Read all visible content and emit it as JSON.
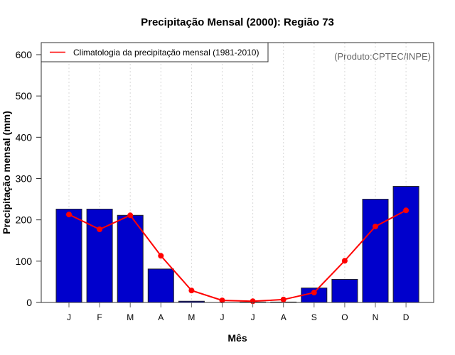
{
  "chart_data": {
    "type": "bar",
    "title": "Precipitação Mensal (2000): Região 73",
    "xlabel": "Mês",
    "ylabel": "Precipitação mensal (mm)",
    "ylim": [
      0,
      600
    ],
    "yticks": [
      0,
      100,
      200,
      300,
      400,
      500,
      600
    ],
    "categories": [
      "J",
      "F",
      "M",
      "A",
      "M",
      "J",
      "J",
      "A",
      "S",
      "O",
      "N",
      "D"
    ],
    "grid": "vertical dotted",
    "series": [
      {
        "name": "Precipitação mensal (2000)",
        "type": "bar",
        "color": "#0000cc",
        "values": [
          226,
          226,
          211,
          81,
          3,
          0,
          1,
          1,
          35,
          56,
          250,
          281
        ]
      },
      {
        "name": "Climatologia da precipitação mensal (1981-2010)",
        "type": "line",
        "color": "#ff0000",
        "values": [
          213,
          177,
          211,
          113,
          29,
          5,
          3,
          7,
          24,
          101,
          184,
          223
        ]
      }
    ],
    "legend": {
      "position": "top-left",
      "entries": [
        "Climatologia da precipitação mensal (1981-2010)"
      ]
    },
    "annotation": "(Produto:CPTEC/INPE)"
  }
}
